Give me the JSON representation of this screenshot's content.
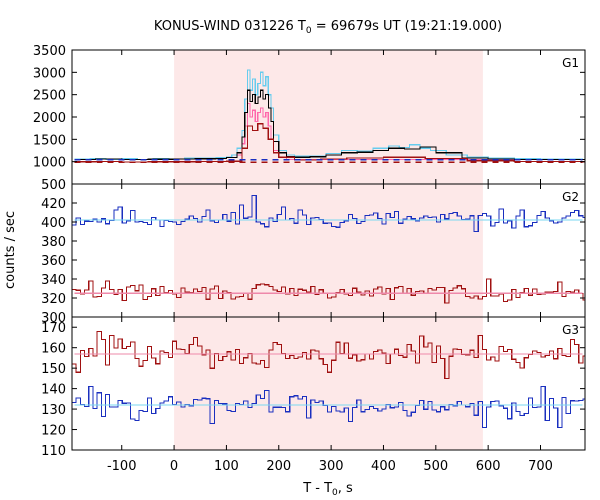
{
  "chart_data": {
    "type": "line",
    "title": {
      "prefix": "KONUS-WIND 031226 T",
      "sub": "0",
      "suffix": " = 69679s UT (19:21:19.000)"
    },
    "xlabel": {
      "prefix": "T - T",
      "sub": "0",
      "suffix": ", s"
    },
    "ylabel": "counts / sec",
    "xlim": [
      -195,
      785
    ],
    "x_ticks": [
      -100,
      0,
      100,
      200,
      300,
      400,
      500,
      600,
      700
    ],
    "x_tick_labels": [
      "-100",
      "0",
      "100",
      "200",
      "300",
      "400",
      "500",
      "600",
      "700"
    ],
    "shaded_interval": [
      0,
      590
    ],
    "colors": {
      "shade": "#fde8e8",
      "g1_light_blue": "#66ccee",
      "g1_pink": "#ff66aa",
      "dark_red": "#a01010",
      "dark_blue": "#1a2fbf",
      "fit_light_blue": "#7ad7f0",
      "fit_pink": "#ee88aa",
      "black": "#000000"
    },
    "panels": [
      {
        "name": "G1",
        "ylim": [
          500,
          3500
        ],
        "y_ticks": [
          500,
          1000,
          1500,
          2000,
          2500,
          3000,
          3500
        ],
        "y_tick_labels": [
          "500",
          "1000",
          "1500",
          "2000",
          "2500",
          "3000",
          "3500"
        ],
        "bin": 10,
        "background_level": 1000,
        "series": [
          {
            "role": "light_blue",
            "x": [
              -190,
              -160,
              -130,
              -100,
              -70,
              -40,
              -10,
              20,
              50,
              80,
              100,
              110,
              120,
              130,
              135,
              140,
              145,
              150,
              155,
              160,
              165,
              170,
              175,
              180,
              185,
              190,
              200,
              215,
              230,
              260,
              290,
              320,
              350,
              380,
              410,
              430,
              450,
              470,
              490,
              520,
              560,
              600,
              650,
              700,
              780
            ],
            "y": [
              1060,
              1070,
              1055,
              1065,
              1050,
              1070,
              1060,
              1075,
              1080,
              1090,
              1100,
              1150,
              1300,
              1700,
              2400,
              3050,
              2600,
              2850,
              2500,
              2750,
              3000,
              2700,
              2900,
              2500,
              2200,
              1600,
              1250,
              1150,
              1120,
              1130,
              1180,
              1250,
              1240,
              1300,
              1350,
              1320,
              1380,
              1300,
              1250,
              1150,
              1100,
              1080,
              1070,
              1060,
              1050
            ]
          },
          {
            "role": "pink",
            "x": [
              120,
              130,
              135,
              140,
              145,
              150,
              155,
              160,
              165,
              170,
              175,
              180,
              185,
              190,
              200,
              215
            ],
            "y": [
              1150,
              1400,
              1800,
              2300,
              2000,
              2150,
              1900,
              2100,
              2200,
              2000,
              2100,
              1800,
              1500,
              1250,
              1100,
              1050
            ]
          },
          {
            "role": "black",
            "x": [
              -190,
              -150,
              -100,
              -50,
              0,
              40,
              80,
              100,
              120,
              130,
              135,
              140,
              145,
              150,
              155,
              160,
              165,
              170,
              175,
              180,
              185,
              190,
              200,
              215,
              230,
              260,
              290,
              320,
              350,
              380,
              410,
              440,
              470,
              500,
              550,
              600,
              650,
              700,
              780
            ],
            "y": [
              1050,
              1060,
              1050,
              1055,
              1060,
              1065,
              1075,
              1090,
              1200,
              1550,
              2100,
              2600,
              2350,
              2500,
              2300,
              2450,
              2600,
              2400,
              2500,
              2200,
              1900,
              1450,
              1200,
              1120,
              1100,
              1110,
              1150,
              1200,
              1210,
              1250,
              1300,
              1280,
              1330,
              1200,
              1080,
              1060,
              1050,
              1050,
              1045
            ]
          },
          {
            "role": "dark_red",
            "x": [
              -190,
              -150,
              -100,
              -50,
              0,
              50,
              100,
              130,
              140,
              150,
              160,
              170,
              180,
              190,
              200,
              230,
              280,
              330,
              400,
              480,
              560,
              650,
              780
            ],
            "y": [
              1000,
              1005,
              995,
              1000,
              1000,
              1005,
              1010,
              1300,
              1800,
              1700,
              1850,
              1750,
              1500,
              1200,
              1100,
              1040,
              1060,
              1080,
              1100,
              1070,
              1020,
              1005,
              1000
            ]
          },
          {
            "role": "dark_blue_dashed",
            "x": [
              -190,
              780
            ],
            "y": [
              1040,
              1040
            ]
          },
          {
            "role": "dark_red_dashed",
            "x": [
              -190,
              780
            ],
            "y": [
              985,
              985
            ]
          }
        ]
      },
      {
        "name": "G2",
        "ylim": [
          300,
          440
        ],
        "y_ticks": [
          300,
          320,
          340,
          360,
          380,
          400,
          420
        ],
        "y_tick_labels": [
          "300",
          "320",
          "340",
          "360",
          "380",
          "400",
          "420"
        ],
        "bin": 8,
        "series": [
          {
            "role": "dark_blue_noise",
            "mean": 403,
            "amp": 7,
            "seed": 11,
            "spikes": [
              [
                125,
                418
              ],
              [
                150,
                428
              ],
              [
                175,
                395
              ],
              [
                205,
                416
              ],
              [
                -110,
                416
              ],
              [
                570,
                390
              ],
              [
                760,
                410
              ]
            ]
          },
          {
            "role": "dark_red_noise",
            "mean": 326,
            "amp": 6,
            "seed": 29,
            "spikes": [
              [
                -165,
                338
              ],
              [
                -130,
                338
              ],
              [
                155,
                334
              ],
              [
                600,
                340
              ],
              [
                730,
                337
              ]
            ]
          },
          {
            "role": "fit_light_blue",
            "x": [
              -190,
              780
            ],
            "y": [
              402,
              402
            ]
          },
          {
            "role": "fit_pink",
            "x": [
              -190,
              780
            ],
            "y": [
              325,
              325
            ]
          }
        ]
      },
      {
        "name": "G3",
        "ylim": [
          110,
          175
        ],
        "y_ticks": [
          110,
          120,
          130,
          140,
          150,
          160,
          170
        ],
        "y_tick_labels": [
          "110",
          "120",
          "130",
          "140",
          "150",
          "160",
          "170"
        ],
        "bin": 8,
        "series": [
          {
            "role": "dark_red_noise",
            "mean": 157,
            "amp": 5,
            "seed": 47,
            "spikes": [
              [
                -185,
                148
              ],
              [
                -150,
                168
              ],
              [
                -120,
                166
              ],
              [
                40,
                165
              ],
              [
                290,
                148
              ],
              [
                580,
                166
              ],
              [
                520,
                145
              ],
              [
                760,
                164
              ]
            ]
          },
          {
            "role": "dark_blue_noise",
            "mean": 132,
            "amp": 4,
            "seed": 83,
            "spikes": [
              [
                -165,
                141
              ],
              [
                -150,
                138
              ],
              [
                70,
                123
              ],
              [
                175,
                139
              ],
              [
                330,
                124
              ],
              [
                590,
                121
              ],
              [
                700,
                141
              ],
              [
                730,
                121
              ]
            ]
          },
          {
            "role": "fit_pink",
            "x": [
              -190,
              780
            ],
            "y": [
              157,
              157
            ]
          },
          {
            "role": "fit_light_blue",
            "x": [
              -190,
              780
            ],
            "y": [
              132,
              132
            ]
          }
        ]
      }
    ]
  }
}
